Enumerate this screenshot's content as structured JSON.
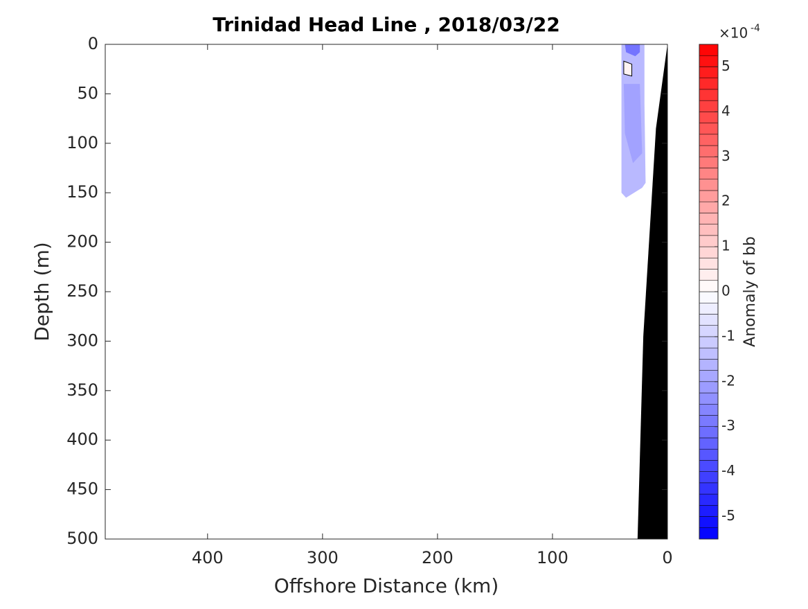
{
  "chart_data": {
    "type": "contour",
    "title": "Trinidad Head Line , 2018/03/22",
    "x_label": "Offshore Distance (km)",
    "y_label": "Depth (m)",
    "xlim": [
      489,
      0
    ],
    "ylim": [
      0,
      500
    ],
    "xticks": [
      400,
      300,
      200,
      100,
      0
    ],
    "yticks": [
      0,
      50,
      100,
      150,
      200,
      250,
      300,
      350,
      400,
      450,
      500
    ],
    "colorbar": {
      "label": "Anomaly of bb",
      "multiplier_base": "×10",
      "multiplier_exponent": "-4",
      "clim": [
        -5.5,
        5.5
      ],
      "ticks": [
        -5,
        -4,
        -3,
        -2,
        -1,
        0,
        1,
        2,
        3,
        4,
        5
      ],
      "level_step": 0.25,
      "colormap": [
        "#0000ff",
        "#ffffff",
        "#ff0000"
      ]
    },
    "patches": [
      {
        "value": -1.5,
        "x": [
          40,
          20,
          20,
          19,
          22,
          36,
          40
        ],
        "depth": [
          0,
          0,
          60,
          140,
          145,
          155,
          150
        ]
      },
      {
        "value": -2,
        "x": [
          38,
          24,
          22,
          30,
          37
        ],
        "depth": [
          40,
          40,
          110,
          120,
          90
        ]
      },
      {
        "value": -3,
        "x": [
          37,
          24,
          24,
          28,
          36
        ],
        "depth": [
          0,
          0,
          8,
          12,
          8
        ]
      },
      {
        "value": 0.25,
        "x": [
          38,
          31,
          31,
          38
        ],
        "depth": [
          17,
          20,
          32,
          30
        ]
      }
    ],
    "bathymetry": {
      "color": "#000000",
      "x": [
        0,
        10,
        21,
        26,
        0
      ],
      "depth": [
        0,
        85,
        295,
        500,
        500
      ]
    }
  }
}
